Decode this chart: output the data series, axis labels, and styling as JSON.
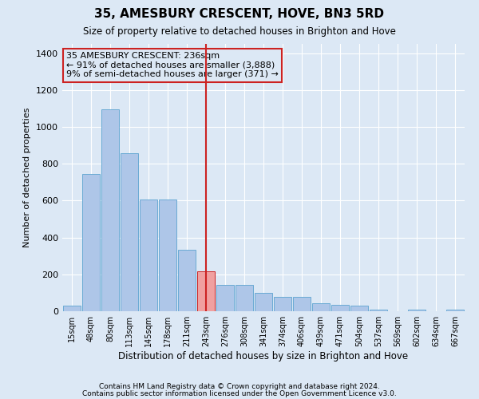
{
  "title": "35, AMESBURY CRESCENT, HOVE, BN3 5RD",
  "subtitle": "Size of property relative to detached houses in Brighton and Hove",
  "xlabel": "Distribution of detached houses by size in Brighton and Hove",
  "ylabel": "Number of detached properties",
  "footnote1": "Contains HM Land Registry data © Crown copyright and database right 2024.",
  "footnote2": "Contains public sector information licensed under the Open Government Licence v3.0.",
  "bar_color": "#aec6e8",
  "bar_edge_color": "#6aaad4",
  "highlight_color": "#cc2222",
  "marker_bin_index": 7,
  "categories": [
    "15sqm",
    "48sqm",
    "80sqm",
    "113sqm",
    "145sqm",
    "178sqm",
    "211sqm",
    "243sqm",
    "276sqm",
    "308sqm",
    "341sqm",
    "374sqm",
    "406sqm",
    "439sqm",
    "471sqm",
    "504sqm",
    "537sqm",
    "569sqm",
    "602sqm",
    "634sqm",
    "667sqm"
  ],
  "values": [
    30,
    745,
    1095,
    855,
    605,
    605,
    335,
    215,
    145,
    145,
    100,
    80,
    80,
    45,
    35,
    30,
    10,
    0,
    10,
    0,
    10
  ],
  "ylim": [
    0,
    1450
  ],
  "yticks": [
    0,
    200,
    400,
    600,
    800,
    1000,
    1200,
    1400
  ],
  "highlight_bar_index": 7,
  "highlight_bar_color": "#f0a0a0",
  "annotation_title": "35 AMESBURY CRESCENT: 236sqm",
  "annotation_line1": "← 91% of detached houses are smaller (3,888)",
  "annotation_line2": "9% of semi-detached houses are larger (371) →",
  "background_color": "#dce8f5",
  "grid_color": "#ffffff"
}
